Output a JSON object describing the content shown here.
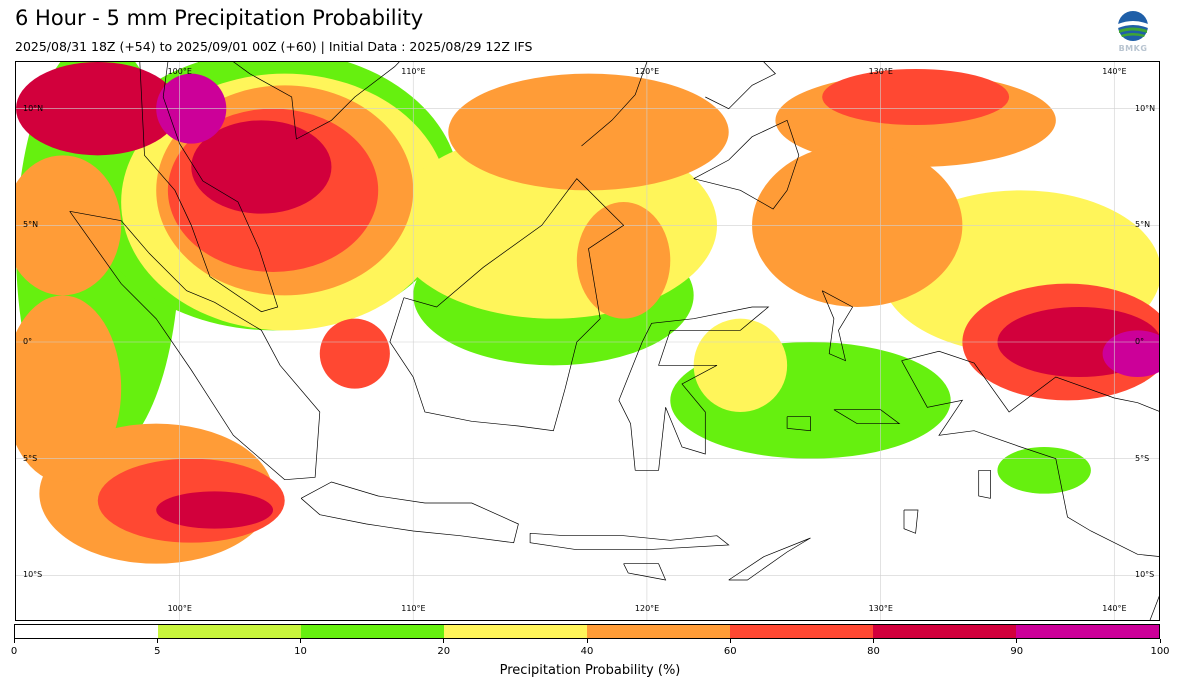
{
  "header": {
    "title": "6 Hour - 5 mm Precipitation Probability",
    "subtitle": "2025/08/31 18Z (+54) to 2025/09/01 00Z (+60) | Initial Data : 2025/08/29 12Z IFS",
    "logo_text": "BMKG"
  },
  "map": {
    "extent": {
      "lon_min": 93,
      "lon_max": 142,
      "lat_min": -12,
      "lat_max": 12
    },
    "lon_ticks_top": [
      {
        "lon": 100,
        "label": "100°E"
      },
      {
        "lon": 110,
        "label": "110°E"
      },
      {
        "lon": 120,
        "label": "120°E"
      },
      {
        "lon": 130,
        "label": "130°E"
      },
      {
        "lon": 140,
        "label": "140°E"
      }
    ],
    "lon_ticks_bottom": [
      {
        "lon": 100,
        "label": "100°E"
      },
      {
        "lon": 110,
        "label": "110°E"
      },
      {
        "lon": 120,
        "label": "120°E"
      },
      {
        "lon": 130,
        "label": "130°E"
      },
      {
        "lon": 140,
        "label": "140°E"
      }
    ],
    "lat_ticks": [
      {
        "lat": 10,
        "label": "10°N"
      },
      {
        "lat": 5,
        "label": "5°N"
      },
      {
        "lat": 0,
        "label": "0°"
      },
      {
        "lat": -5,
        "label": "5°S"
      },
      {
        "lat": -10,
        "label": "10°S"
      }
    ],
    "gridlines": true,
    "probability_regions": [
      {
        "level": 10,
        "lon": 96.5,
        "lat": 4.0,
        "rx": 3.5,
        "ry": 9.0
      },
      {
        "level": 10,
        "lon": 104.0,
        "lat": 6.5,
        "rx": 8.0,
        "ry": 6.0
      },
      {
        "level": 20,
        "lon": 104.5,
        "lat": 6.0,
        "rx": 7.0,
        "ry": 5.5
      },
      {
        "level": 40,
        "lon": 104.5,
        "lat": 6.5,
        "rx": 5.5,
        "ry": 4.5
      },
      {
        "level": 60,
        "lon": 104.0,
        "lat": 6.5,
        "rx": 4.5,
        "ry": 3.5
      },
      {
        "level": 80,
        "lon": 103.5,
        "lat": 7.5,
        "rx": 3.0,
        "ry": 2.0
      },
      {
        "level": 90,
        "lon": 100.5,
        "lat": 10.0,
        "rx": 1.5,
        "ry": 1.5
      },
      {
        "level": 80,
        "lon": 96.5,
        "lat": 10.0,
        "rx": 3.5,
        "ry": 2.0
      },
      {
        "level": 40,
        "lon": 95.0,
        "lat": 5.0,
        "rx": 2.5,
        "ry": 3.0
      },
      {
        "level": 40,
        "lon": 99.0,
        "lat": -6.5,
        "rx": 5.0,
        "ry": 3.0
      },
      {
        "level": 60,
        "lon": 100.5,
        "lat": -6.8,
        "rx": 4.0,
        "ry": 1.8
      },
      {
        "level": 80,
        "lon": 101.5,
        "lat": -7.2,
        "rx": 2.5,
        "ry": 0.8
      },
      {
        "level": 40,
        "lon": 95.0,
        "lat": -2.0,
        "rx": 2.5,
        "ry": 4.0
      },
      {
        "level": 20,
        "lon": 116.0,
        "lat": 5.0,
        "rx": 7.0,
        "ry": 4.0
      },
      {
        "level": 10,
        "lon": 116.0,
        "lat": 2.0,
        "rx": 6.0,
        "ry": 3.0
      },
      {
        "level": 40,
        "lon": 117.5,
        "lat": 9.0,
        "rx": 6.0,
        "ry": 2.5
      },
      {
        "level": 40,
        "lon": 131.5,
        "lat": 9.5,
        "rx": 6.0,
        "ry": 2.0
      },
      {
        "level": 60,
        "lon": 131.5,
        "lat": 10.5,
        "rx": 4.0,
        "ry": 1.2
      },
      {
        "level": 40,
        "lon": 129.0,
        "lat": 5.0,
        "rx": 4.5,
        "ry": 3.5
      },
      {
        "level": 20,
        "lon": 136.0,
        "lat": 3.0,
        "rx": 6.0,
        "ry": 3.5
      },
      {
        "level": 60,
        "lon": 138.0,
        "lat": 0.0,
        "rx": 4.5,
        "ry": 2.5
      },
      {
        "level": 80,
        "lon": 138.5,
        "lat": 0.0,
        "rx": 3.5,
        "ry": 1.5
      },
      {
        "level": 90,
        "lon": 141.0,
        "lat": -0.5,
        "rx": 1.5,
        "ry": 1.0
      },
      {
        "level": 10,
        "lon": 127.0,
        "lat": -2.5,
        "rx": 6.0,
        "ry": 2.5
      },
      {
        "level": 20,
        "lon": 124.0,
        "lat": -1.0,
        "rx": 2.0,
        "ry": 2.0
      },
      {
        "level": 40,
        "lon": 119.0,
        "lat": 3.5,
        "rx": 2.0,
        "ry": 2.5
      },
      {
        "level": 60,
        "lon": 107.5,
        "lat": -0.5,
        "rx": 1.5,
        "ry": 1.5
      },
      {
        "level": 10,
        "lon": 137.0,
        "lat": -5.5,
        "rx": 2.0,
        "ry": 1.0
      }
    ]
  },
  "colorbar": {
    "levels": [
      0,
      5,
      10,
      20,
      40,
      60,
      80,
      90,
      100
    ],
    "tick_labels": [
      "0",
      "5",
      "10",
      "20",
      "40",
      "60",
      "80",
      "90",
      "100"
    ],
    "colors": [
      "#ffffff",
      "#c8f53c",
      "#66f00f",
      "#fff55a",
      "#ff9c37",
      "#ff4832",
      "#d2003c",
      "#cc0099"
    ],
    "label": "Precipitation Probability (%)"
  }
}
